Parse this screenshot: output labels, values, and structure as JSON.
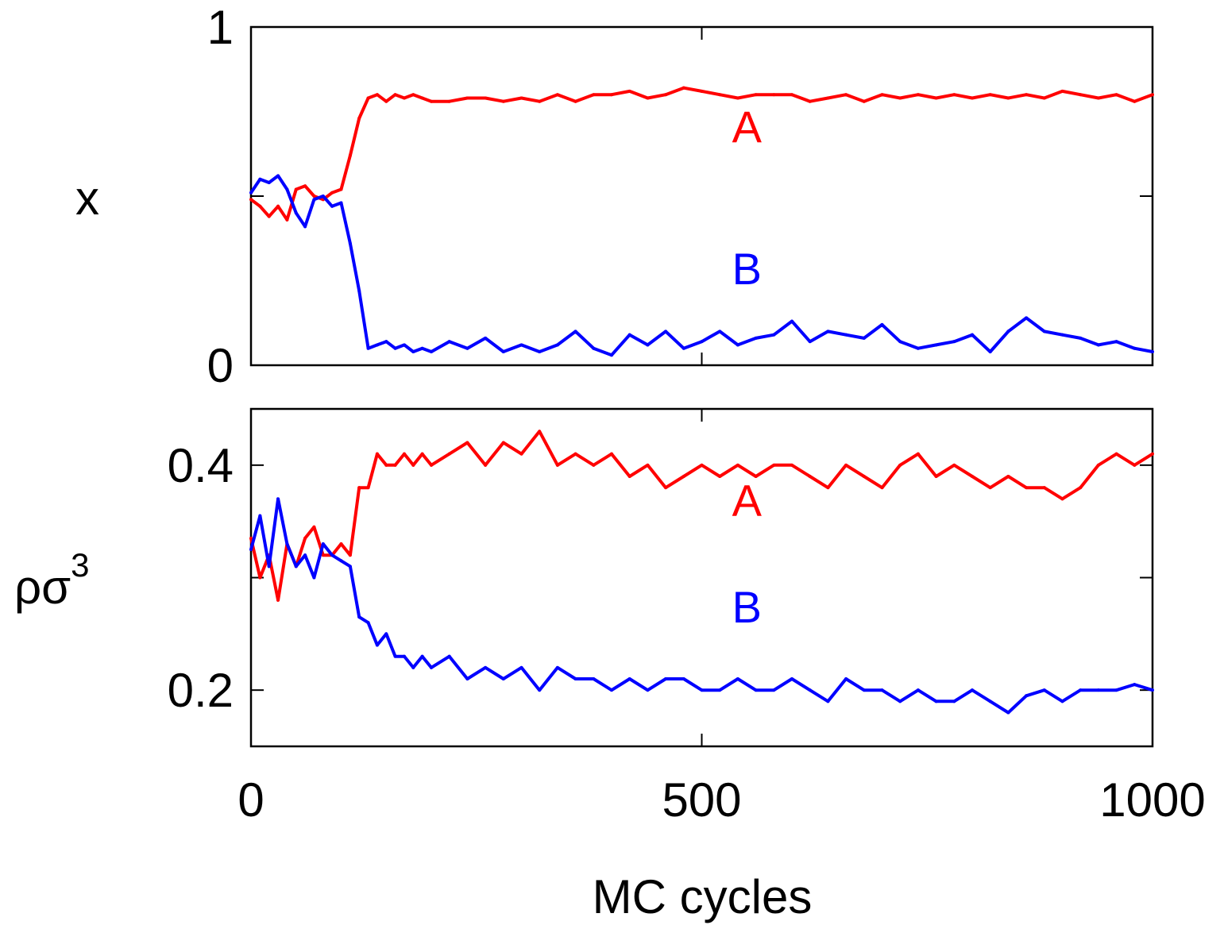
{
  "chart_data": [
    {
      "type": "line",
      "panel": "top",
      "ylabel": "x",
      "xlim": [
        0,
        1000
      ],
      "ylim": [
        0,
        1
      ],
      "yticks": [
        0,
        0.5,
        1
      ],
      "ytick_labels": [
        "0",
        "",
        "1"
      ],
      "xticks": [
        0,
        500,
        1000
      ],
      "grid": false,
      "series": [
        {
          "name": "A",
          "color": "#ff0000",
          "label_at": [
            550,
            0.66
          ],
          "x": [
            0,
            10,
            20,
            30,
            40,
            50,
            60,
            70,
            80,
            90,
            100,
            110,
            120,
            130,
            140,
            150,
            160,
            170,
            180,
            190,
            200,
            220,
            240,
            260,
            280,
            300,
            320,
            340,
            360,
            380,
            400,
            420,
            440,
            460,
            480,
            500,
            520,
            540,
            560,
            580,
            600,
            620,
            640,
            660,
            680,
            700,
            720,
            740,
            760,
            780,
            800,
            820,
            840,
            860,
            880,
            900,
            920,
            940,
            960,
            980,
            1000
          ],
          "y": [
            0.49,
            0.47,
            0.44,
            0.47,
            0.43,
            0.52,
            0.53,
            0.5,
            0.49,
            0.51,
            0.52,
            0.62,
            0.73,
            0.79,
            0.8,
            0.78,
            0.8,
            0.79,
            0.8,
            0.79,
            0.78,
            0.78,
            0.79,
            0.79,
            0.78,
            0.79,
            0.78,
            0.8,
            0.78,
            0.8,
            0.8,
            0.81,
            0.79,
            0.8,
            0.82,
            0.81,
            0.8,
            0.79,
            0.8,
            0.8,
            0.8,
            0.78,
            0.79,
            0.8,
            0.78,
            0.8,
            0.79,
            0.8,
            0.79,
            0.8,
            0.79,
            0.8,
            0.79,
            0.8,
            0.79,
            0.81,
            0.8,
            0.79,
            0.8,
            0.78,
            0.8
          ]
        },
        {
          "name": "B",
          "color": "#0000ff",
          "label_at": [
            550,
            0.24
          ],
          "x": [
            0,
            10,
            20,
            30,
            40,
            50,
            60,
            70,
            80,
            90,
            100,
            110,
            120,
            130,
            140,
            150,
            160,
            170,
            180,
            190,
            200,
            220,
            240,
            260,
            280,
            300,
            320,
            340,
            360,
            380,
            400,
            420,
            440,
            460,
            480,
            500,
            520,
            540,
            560,
            580,
            600,
            620,
            640,
            660,
            680,
            700,
            720,
            740,
            760,
            780,
            800,
            820,
            840,
            860,
            880,
            900,
            920,
            940,
            960,
            980,
            1000
          ],
          "y": [
            0.51,
            0.55,
            0.54,
            0.56,
            0.52,
            0.45,
            0.41,
            0.49,
            0.5,
            0.47,
            0.48,
            0.36,
            0.22,
            0.05,
            0.06,
            0.07,
            0.05,
            0.06,
            0.04,
            0.05,
            0.04,
            0.07,
            0.05,
            0.08,
            0.04,
            0.06,
            0.04,
            0.06,
            0.1,
            0.05,
            0.03,
            0.09,
            0.06,
            0.1,
            0.05,
            0.07,
            0.1,
            0.06,
            0.08,
            0.09,
            0.13,
            0.07,
            0.1,
            0.09,
            0.08,
            0.12,
            0.07,
            0.05,
            0.06,
            0.07,
            0.09,
            0.04,
            0.1,
            0.14,
            0.1,
            0.09,
            0.08,
            0.06,
            0.07,
            0.05,
            0.04
          ]
        }
      ]
    },
    {
      "type": "line",
      "panel": "bottom",
      "ylabel": "ρσ",
      "ylabel_superscript": "3",
      "xlabel": "MC cycles",
      "xlim": [
        0,
        1000
      ],
      "ylim": [
        0.15,
        0.45
      ],
      "yticks": [
        0.2,
        0.3,
        0.4
      ],
      "ytick_labels": [
        "0.2",
        "",
        "0.4"
      ],
      "xticks": [
        0,
        500,
        1000
      ],
      "xtick_labels": [
        "0",
        "500",
        "1000"
      ],
      "grid": false,
      "series": [
        {
          "name": "A",
          "color": "#ff0000",
          "label_at": [
            550,
            0.355
          ],
          "x": [
            0,
            10,
            20,
            30,
            40,
            50,
            60,
            70,
            80,
            90,
            100,
            110,
            120,
            130,
            140,
            150,
            160,
            170,
            180,
            190,
            200,
            220,
            240,
            260,
            280,
            300,
            320,
            340,
            360,
            380,
            400,
            420,
            440,
            460,
            480,
            500,
            520,
            540,
            560,
            580,
            600,
            620,
            640,
            660,
            680,
            700,
            720,
            740,
            760,
            780,
            800,
            820,
            840,
            860,
            880,
            900,
            920,
            940,
            960,
            980,
            1000
          ],
          "y": [
            0.335,
            0.3,
            0.32,
            0.28,
            0.33,
            0.31,
            0.335,
            0.345,
            0.32,
            0.32,
            0.33,
            0.32,
            0.38,
            0.38,
            0.41,
            0.4,
            0.4,
            0.41,
            0.4,
            0.41,
            0.4,
            0.41,
            0.42,
            0.4,
            0.42,
            0.41,
            0.43,
            0.4,
            0.41,
            0.4,
            0.41,
            0.39,
            0.4,
            0.38,
            0.39,
            0.4,
            0.39,
            0.4,
            0.39,
            0.4,
            0.4,
            0.39,
            0.38,
            0.4,
            0.39,
            0.38,
            0.4,
            0.41,
            0.39,
            0.4,
            0.39,
            0.38,
            0.39,
            0.38,
            0.38,
            0.37,
            0.38,
            0.4,
            0.41,
            0.4,
            0.41
          ]
        },
        {
          "name": "B",
          "color": "#0000ff",
          "label_at": [
            550,
            0.26
          ],
          "x": [
            0,
            10,
            20,
            30,
            40,
            50,
            60,
            70,
            80,
            90,
            100,
            110,
            120,
            130,
            140,
            150,
            160,
            170,
            180,
            190,
            200,
            220,
            240,
            260,
            280,
            300,
            320,
            340,
            360,
            380,
            400,
            420,
            440,
            460,
            480,
            500,
            520,
            540,
            560,
            580,
            600,
            620,
            640,
            660,
            680,
            700,
            720,
            740,
            760,
            780,
            800,
            820,
            840,
            860,
            880,
            900,
            920,
            940,
            960,
            980,
            1000
          ],
          "y": [
            0.325,
            0.355,
            0.31,
            0.37,
            0.33,
            0.31,
            0.32,
            0.3,
            0.33,
            0.32,
            0.315,
            0.31,
            0.265,
            0.26,
            0.24,
            0.25,
            0.23,
            0.23,
            0.22,
            0.23,
            0.22,
            0.23,
            0.21,
            0.22,
            0.21,
            0.22,
            0.2,
            0.22,
            0.21,
            0.21,
            0.2,
            0.21,
            0.2,
            0.21,
            0.21,
            0.2,
            0.2,
            0.21,
            0.2,
            0.2,
            0.21,
            0.2,
            0.19,
            0.21,
            0.2,
            0.2,
            0.19,
            0.2,
            0.19,
            0.19,
            0.2,
            0.19,
            0.18,
            0.195,
            0.2,
            0.19,
            0.2,
            0.2,
            0.2,
            0.205,
            0.2
          ]
        }
      ]
    }
  ]
}
